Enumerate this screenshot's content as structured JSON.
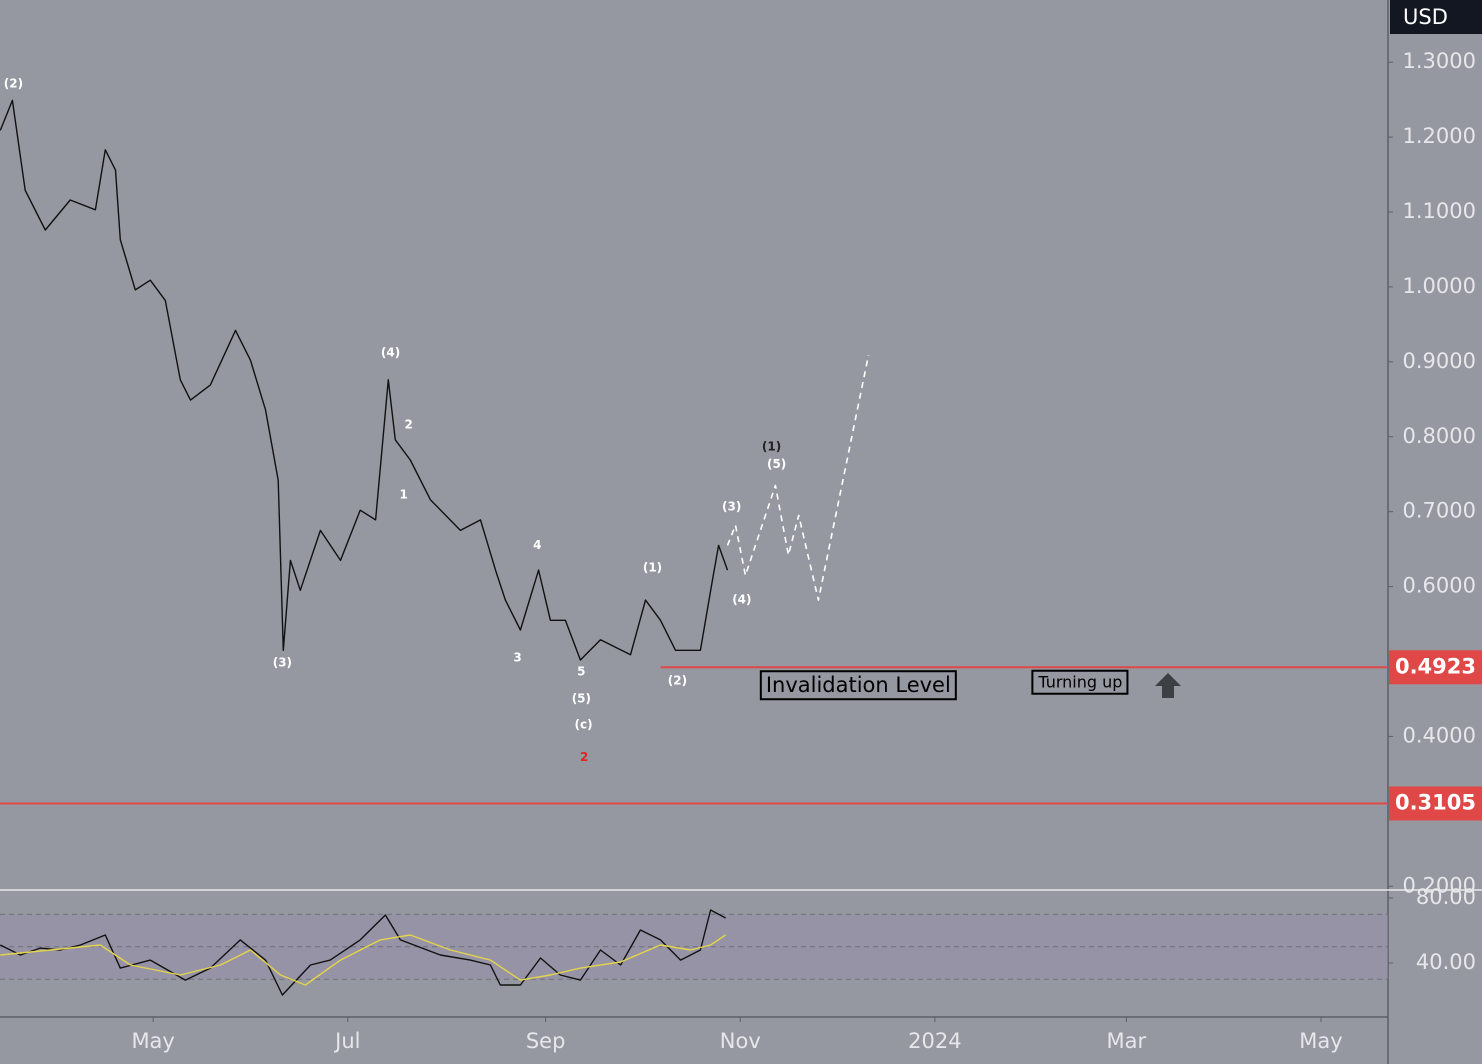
{
  "currency": "USD",
  "chart_data": [
    {
      "type": "line",
      "xlim": [
        72,
        507
      ],
      "ylim": [
        0.195,
        1.383
      ],
      "yticks": [
        {
          "value": 0.2,
          "label": "0.2000"
        },
        {
          "value": 0.3,
          "label": "0.3000"
        },
        {
          "value": 0.4,
          "label": "0.4000"
        },
        {
          "value": 0.5,
          "label": "0.5000"
        },
        {
          "value": 0.6,
          "label": "0.6000"
        },
        {
          "value": 0.7,
          "label": "0.7000"
        },
        {
          "value": 0.8,
          "label": "0.8000"
        },
        {
          "value": 0.9,
          "label": "0.9000"
        },
        {
          "value": 1.0,
          "label": "1.0000"
        },
        {
          "value": 1.1,
          "label": "1.1000"
        },
        {
          "value": 1.2,
          "label": "1.2000"
        },
        {
          "value": 1.3,
          "label": "1.3000"
        }
      ],
      "series": [
        {
          "color": "#111111",
          "dashed": false,
          "x": [
            72.1,
            75.9,
            79.9,
            86.2,
            94.0,
            101.9,
            105.0,
            108.2,
            109.7,
            114.4,
            119.1,
            123.8,
            128.5,
            131.7,
            137.9,
            145.8,
            150.5,
            155.2,
            159.2,
            160.8,
            163.0,
            166.1,
            172.4,
            178.7,
            184.9,
            189.7,
            193.7,
            195.9,
            200.6,
            206.9,
            216.3,
            222.6,
            227.3,
            230.4,
            235.1,
            240.8,
            244.5,
            249.2,
            253.9,
            260.2,
            269.6,
            274.3,
            279.0,
            283.7,
            291.5,
            295.3,
            297.2,
            300.0
          ],
          "values": [
            1.209,
            1.249,
            1.129,
            1.076,
            1.116,
            1.103,
            1.183,
            1.156,
            1.063,
            0.996,
            1.009,
            0.982,
            0.876,
            0.849,
            0.869,
            0.942,
            0.902,
            0.836,
            0.742,
            0.515,
            0.635,
            0.595,
            0.675,
            0.635,
            0.702,
            0.689,
            0.876,
            0.796,
            0.769,
            0.716,
            0.675,
            0.689,
            0.622,
            0.582,
            0.542,
            0.622,
            0.555,
            0.555,
            0.502,
            0.529,
            0.509,
            0.582,
            0.555,
            0.515,
            0.515,
            0.609,
            0.655,
            0.622
          ]
        },
        {
          "color": "#ffffff",
          "dashed": true,
          "x": [
            300,
            302.5,
            305.6,
            315,
            319.1,
            322.3,
            328.5,
            344.2
          ],
          "values": [
            0.655,
            0.682,
            0.615,
            0.735,
            0.642,
            0.695,
            0.582,
            0.909
          ]
        }
      ],
      "levels": [
        {
          "value": 0.4923,
          "x_start": 279,
          "color": "#e04848"
        },
        {
          "value": 0.3105,
          "x_start": 72,
          "color": "#e04848"
        }
      ],
      "annotations": [
        {
          "text": "(2)",
          "x": 76.2,
          "y": 1.271,
          "color": "#ffffff"
        },
        {
          "text": "(4)",
          "x": 194.4,
          "y": 0.912,
          "color": "#ffffff"
        },
        {
          "text": "2",
          "x": 200.1,
          "y": 0.816,
          "color": "#ffffff"
        },
        {
          "text": "1",
          "x": 198.5,
          "y": 0.722,
          "color": "#ffffff"
        },
        {
          "text": "(3)",
          "x": 160.5,
          "y": 0.498,
          "color": "#ffffff"
        },
        {
          "text": "4",
          "x": 240.4,
          "y": 0.655,
          "color": "#ffffff"
        },
        {
          "text": "3",
          "x": 234.2,
          "y": 0.505,
          "color": "#ffffff"
        },
        {
          "text": "5",
          "x": 254.2,
          "y": 0.486,
          "color": "#ffffff"
        },
        {
          "text": "(5)",
          "x": 254.2,
          "y": 0.45,
          "color": "#ffffff"
        },
        {
          "text": "(c)",
          "x": 254.9,
          "y": 0.415,
          "color": "#ffffff"
        },
        {
          "text": "2",
          "x": 255.1,
          "y": 0.372,
          "color": "#e82020"
        },
        {
          "text": "(1)",
          "x": 276.5,
          "y": 0.625,
          "color": "#ffffff"
        },
        {
          "text": "(2)",
          "x": 284.3,
          "y": 0.474,
          "color": "#ffffff"
        },
        {
          "text": "(3)",
          "x": 301.3,
          "y": 0.706,
          "color": "#ffffff"
        },
        {
          "text": "(4)",
          "x": 304.5,
          "y": 0.582,
          "color": "#ffffff"
        },
        {
          "text": "(1)",
          "x": 313.8,
          "y": 0.786,
          "color": "#222222"
        },
        {
          "text": "(5)",
          "x": 315.4,
          "y": 0.763,
          "color": "#ffffff"
        }
      ],
      "boxes": [
        {
          "text": "Invalidation Level",
          "x": 341,
          "y": 0.467
        },
        {
          "text": "Turning up",
          "x": 410.6,
          "y": 0.471
        }
      ]
    },
    {
      "type": "line",
      "xlim": [
        72,
        507
      ],
      "ylim": [
        6.8,
        84.9
      ],
      "yticks": [
        {
          "value": 40,
          "label": "40.00"
        },
        {
          "value": 80,
          "label": "80.00"
        }
      ],
      "band": [
        30,
        70
      ],
      "guides": [
        30,
        50,
        70
      ],
      "xticks": [
        {
          "value": 120,
          "label": "May"
        },
        {
          "value": 181,
          "label": "Jul"
        },
        {
          "value": 243,
          "label": "Sep"
        },
        {
          "value": 304,
          "label": "Nov"
        },
        {
          "value": 365,
          "label": "2024"
        },
        {
          "value": 425,
          "label": "Mar"
        },
        {
          "value": 486,
          "label": "May"
        }
      ],
      "series": [
        {
          "color": "#111111",
          "dashed": false,
          "x": [
            72.1,
            78.4,
            84.6,
            90.9,
            97.2,
            105.0,
            109.7,
            119.1,
            130.1,
            137.9,
            147.3,
            155.2,
            160.5,
            169.3,
            175.5,
            184.9,
            192.8,
            197.5,
            210.0,
            219.4,
            225.7,
            228.8,
            235.1,
            241.4,
            247.6,
            253.9,
            260.2,
            266.5,
            272.7,
            279.0,
            285.3,
            291.5,
            294.7,
            299.4
          ],
          "values": [
            51.1,
            44.9,
            49.2,
            48.0,
            51.1,
            57.2,
            36.9,
            41.8,
            29.5,
            36.9,
            54.2,
            41.8,
            20.3,
            38.8,
            41.8,
            54.2,
            69.5,
            54.2,
            44.9,
            41.8,
            38.8,
            26.5,
            26.5,
            43.1,
            32.6,
            29.5,
            48.0,
            38.8,
            60.3,
            54.2,
            41.8,
            48.0,
            72.6,
            67.7
          ]
        },
        {
          "color": "#e3d44a",
          "dashed": false,
          "x": [
            72.1,
            87.8,
            103.4,
            112.9,
            128.5,
            141.1,
            150.5,
            159.9,
            167.7,
            178.7,
            191.2,
            200.6,
            213.2,
            225.7,
            235.1,
            244.5,
            253.9,
            266.5,
            279.0,
            288.4,
            294.7,
            299.4
          ],
          "values": [
            44.9,
            48.0,
            51.1,
            38.8,
            32.6,
            38.8,
            48.0,
            32.6,
            26.5,
            41.8,
            54.2,
            57.2,
            48.0,
            41.8,
            29.5,
            32.6,
            36.9,
            40.6,
            51.1,
            48.0,
            51.1,
            57.2
          ]
        }
      ]
    }
  ]
}
